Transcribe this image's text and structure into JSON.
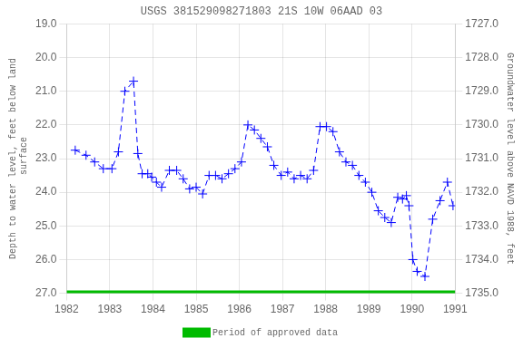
{
  "chart_data": {
    "type": "line",
    "title": "USGS 381529098271803 21S 10W 06AAD 03",
    "y_label": "Depth to water level, feet below land\n surface",
    "y2_label": "Groundwater level above NAVD 1988, feet",
    "x": [
      1982.2,
      1982.45,
      1982.65,
      1982.85,
      1983.05,
      1983.2,
      1983.35,
      1983.55,
      1983.65,
      1983.75,
      1983.88,
      1983.97,
      1984.08,
      1984.2,
      1984.38,
      1984.55,
      1984.7,
      1984.85,
      1985.0,
      1985.15,
      1985.3,
      1985.45,
      1985.6,
      1985.75,
      1985.9,
      1986.05,
      1986.2,
      1986.35,
      1986.5,
      1986.65,
      1986.8,
      1986.97,
      1987.12,
      1987.27,
      1987.42,
      1987.57,
      1987.72,
      1987.87,
      1988.02,
      1988.17,
      1988.32,
      1988.47,
      1988.62,
      1988.77,
      1988.92,
      1989.07,
      1989.22,
      1989.37,
      1989.52,
      1989.67,
      1989.78,
      1989.87,
      1989.93,
      1990.02,
      1990.12,
      1990.3,
      1990.48,
      1990.65,
      1990.82,
      1990.95
    ],
    "xlim": [
      1982,
      1991
    ],
    "xticks": [
      1982,
      1983,
      1984,
      1985,
      1986,
      1987,
      1988,
      1989,
      1990,
      1991
    ],
    "ylim": [
      27.0,
      19.0
    ],
    "yticks": [
      {
        "value": 19.0,
        "label": "19.0"
      },
      {
        "value": 20.0,
        "label": "20.0"
      },
      {
        "value": 21.0,
        "label": "21.0"
      },
      {
        "value": 22.0,
        "label": "22.0"
      },
      {
        "value": 23.0,
        "label": "23.0"
      },
      {
        "value": 24.0,
        "label": "24.0"
      },
      {
        "value": 25.0,
        "label": "25.0"
      },
      {
        "value": 26.0,
        "label": "26.0"
      },
      {
        "value": 27.0,
        "label": "27.0"
      }
    ],
    "y2lim": [
      1735.0,
      1727.0
    ],
    "y2ticks": [
      {
        "value": 1735.0,
        "label": "1735.0"
      },
      {
        "value": 1734.0,
        "label": "1734.0"
      },
      {
        "value": 1733.0,
        "label": "1733.0"
      },
      {
        "value": 1732.0,
        "label": "1732.0"
      },
      {
        "value": 1731.0,
        "label": "1731.0"
      },
      {
        "value": 1730.0,
        "label": "1730.0"
      },
      {
        "value": 1729.0,
        "label": "1729.0"
      },
      {
        "value": 1728.0,
        "label": "1728.0"
      },
      {
        "value": 1727.0,
        "label": "1727.0"
      }
    ],
    "grid": true,
    "legend": "bottom",
    "series": [
      {
        "color": "#0000ff",
        "marker": "plus",
        "line_style": "dashed",
        "values": [
          22.75,
          22.9,
          23.1,
          23.3,
          23.3,
          22.8,
          21.0,
          20.7,
          22.85,
          23.45,
          23.45,
          23.55,
          23.7,
          23.85,
          23.35,
          23.35,
          23.6,
          23.9,
          23.85,
          24.05,
          23.5,
          23.5,
          23.6,
          23.45,
          23.3,
          23.1,
          22.0,
          22.15,
          22.4,
          22.65,
          23.2,
          23.5,
          23.4,
          23.6,
          23.5,
          23.6,
          23.35,
          22.05,
          22.05,
          22.2,
          22.8,
          23.1,
          23.2,
          23.5,
          23.7,
          24.0,
          24.55,
          24.75,
          24.9,
          24.15,
          24.2,
          24.1,
          24.4,
          26.0,
          26.35,
          26.5,
          24.8,
          24.25,
          23.7,
          24.4
        ]
      },
      {
        "name": "Period of approved data",
        "color": "#00bb00",
        "line_style": "solid",
        "x": [
          1982,
          1991
        ],
        "values": [
          27.0,
          27.0
        ]
      }
    ]
  }
}
